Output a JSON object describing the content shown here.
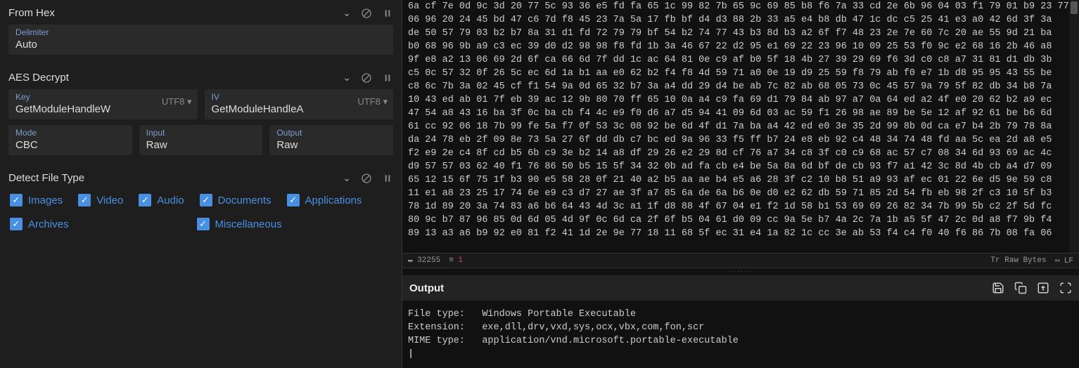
{
  "ops": {
    "fromHex": {
      "title": "From Hex",
      "delimiter": {
        "label": "Delimiter",
        "value": "Auto"
      }
    },
    "aesDecrypt": {
      "title": "AES Decrypt",
      "key": {
        "label": "Key",
        "value": "GetModuleHandleW",
        "enc": "UTF8"
      },
      "iv": {
        "label": "IV",
        "value": "GetModuleHandleA",
        "enc": "UTF8"
      },
      "mode": {
        "label": "Mode",
        "value": "CBC"
      },
      "input": {
        "label": "Input",
        "value": "Raw"
      },
      "output": {
        "label": "Output",
        "value": "Raw"
      }
    },
    "detectFileType": {
      "title": "Detect File Type",
      "checks": {
        "images": "Images",
        "video": "Video",
        "audio": "Audio",
        "documents": "Documents",
        "applications": "Applications",
        "archives": "Archives",
        "misc": "Miscellaneous"
      }
    }
  },
  "hexLines": [
    "6a cf 7e 0d 9c 3d 20 77 5c 93 36 e5 fd fa 65 1c 99 82 7b 65 9c 69 85 b8 f6 7a 33 cd 2e 6b 96 04 03 f1 79 01 b9 23 77",
    "06 96 20 24 45 bd 47 c6 7d f8 45 23 7a 5a 17 fb bf d4 d3 88 2b 33 a5 e4 b8 db 47 1c dc c5 25 41 e3 a0 42 6d 3f 3a",
    "de 50 57 79 03 b2 b7 8a 31 d1 fd 72 79 79 bf 54 b2 74 77 43 b3 8d b3 a2 6f f7 48 23 2e 7e 60 7c 20 ae 55 9d 21 ba",
    "b0 68 96 9b a9 c3 ec 39 d0 d2 98 98 f8 fd 1b 3a 46 67 22 d2 95 e1 69 22 23 96 10 09 25 53 f0 9c e2 68 16 2b 46 a8",
    "9f e8 a2 13 06 69 2d 6f ca 66 6d 7f dd 1c ac 64 81 0e c9 af b0 5f 18 4b 27 39 29 69 f6 3d c0 c8 a7 31 81 d1 db 3b",
    "c5 0c 57 32 0f 26 5c ec 6d 1a b1 aa e0 62 b2 f4 f8 4d 59 71 a0 0e 19 d9 25 59 f8 79 ab f0 e7 1b d8 95 95 43 55 be",
    "c8 6c 7b 3a 02 45 cf f1 54 9a 0d 65 32 b7 3a a4 dd 29 d4 be ab 7c 82 ab 68 05 73 0c 45 57 9a 79 5f 82 db 34 b8 7a",
    "10 43 ed ab 01 7f eb 39 ac 12 9b 80 70 ff 65 10 0a a4 c9 fa 69 d1 79 84 ab 97 a7 0a 64 ed a2 4f e0 20 62 b2 a9 ec",
    "47 54 a8 43 16 ba 3f 0c ba cb f4 4c e9 f0 d6 a7 d5 94 41 09 6d 03 ac 59 f1 26 98 ae 89 be 5e 12 af 92 61 be b6 6d",
    "61 cc 92 06 18 7b 99 fe 5a f7 0f 53 3c 08 92 be 6d 4f d1 7a ba a4 42 ed e0 3e 35 2d 99 8b 0d ca e7 b4 2b 79 78 8a",
    "da 24 78 eb 2f 09 8e 73 5a 27 6f dd db c7 bc ed 9a 96 33 f5 ff b7 24 e8 eb 92 c4 48 34 74 48 fd aa 5c ea 2d a8 e5",
    "f2 e9 2e c4 8f cd b5 6b c9 3e b2 14 a8 df 29 26 e2 29 8d cf 76 a7 34 c8 3f c0 c9 68 ac 57 c7 08 34 6d 93 69 ac 4c",
    "d9 57 57 03 62 40 f1 76 86 50 b5 15 5f 34 32 0b ad fa cb e4 be 5a 8a 6d bf de cb 93 f7 a1 42 3c 8d 4b cb a4 d7 09",
    "65 12 15 6f 75 1f b3 90 e5 58 28 0f 21 40 a2 b5 aa ae b4 e5 a6 28 3f c2 10 b8 51 a9 93 af ec 01 22 6e d5 9e 59 c8",
    "11 e1 a8 23 25 17 74 6e e9 c3 d7 27 ae 3f a7 85 6a de 6a b6 0e d0 e2 62 db 59 71 85 2d 54 fb eb 98 2f c3 10 5f b3",
    "78 1d 89 20 3a 74 83 a6 b6 64 43 4d 3c a1 1f d8 88 4f 67 04 e1 f2 1d 58 b1 53 69 69 26 82 34 7b 99 5b c2 2f 5d fc",
    "80 9c b7 87 96 85 0d 6d 05 4d 9f 0c 6d ca 2f 6f b5 04 61 d0 09 cc 9a 5e b7 4a 2c 7a 1b a5 5f 47 2c 0d a8 f7 9b f4",
    "89 13 a3 a6 b9 92 e0 81 f2 41 1d 2e 9e 77 18 11 68 5f ec 31 e4 1a 82 1c cc 3e ab 53 f4 c4 f0 40 f6 86 7b 08 fa 06"
  ],
  "status": {
    "count": "32255",
    "lines": "1",
    "mode": "Raw Bytes",
    "eol": "LF"
  },
  "output": {
    "title": "Output",
    "lines": [
      "File type:   Windows Portable Executable",
      "Extension:   exe,dll,drv,vxd,sys,ocx,vbx,com,fon,scr",
      "MIME type:   application/vnd.microsoft.portable-executable"
    ]
  }
}
